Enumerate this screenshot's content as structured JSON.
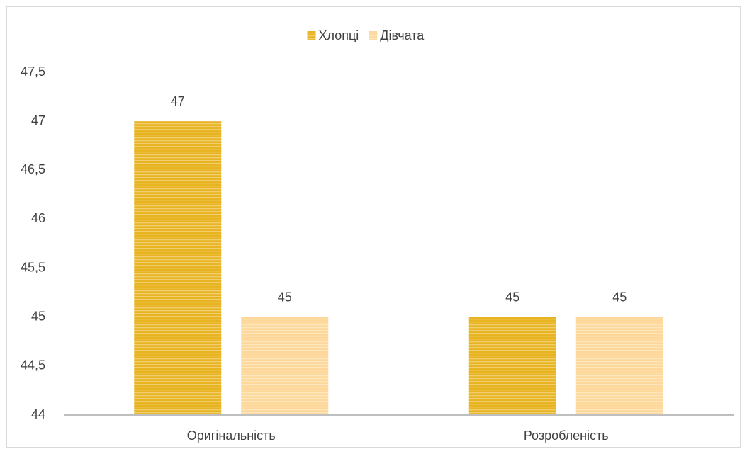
{
  "chart_data": {
    "type": "bar",
    "categories": [
      "Оригінальність",
      "Розробленість"
    ],
    "series": [
      {
        "name": "Хлопці",
        "color": "#e8b422",
        "values": [
          47,
          45
        ]
      },
      {
        "name": "Дівчата",
        "color": "#fdd89a",
        "values": [
          45,
          45
        ]
      }
    ],
    "ylim": [
      44,
      47.5
    ],
    "yticks": [
      44,
      {
        "value": 44.5,
        "label": "44,5"
      },
      45,
      {
        "value": 45.5,
        "label": "45,5"
      },
      46,
      {
        "value": 46.5,
        "label": "46,5"
      },
      47,
      {
        "value": 47.5,
        "label": "47,5"
      }
    ],
    "grid": false,
    "legend": "top"
  }
}
